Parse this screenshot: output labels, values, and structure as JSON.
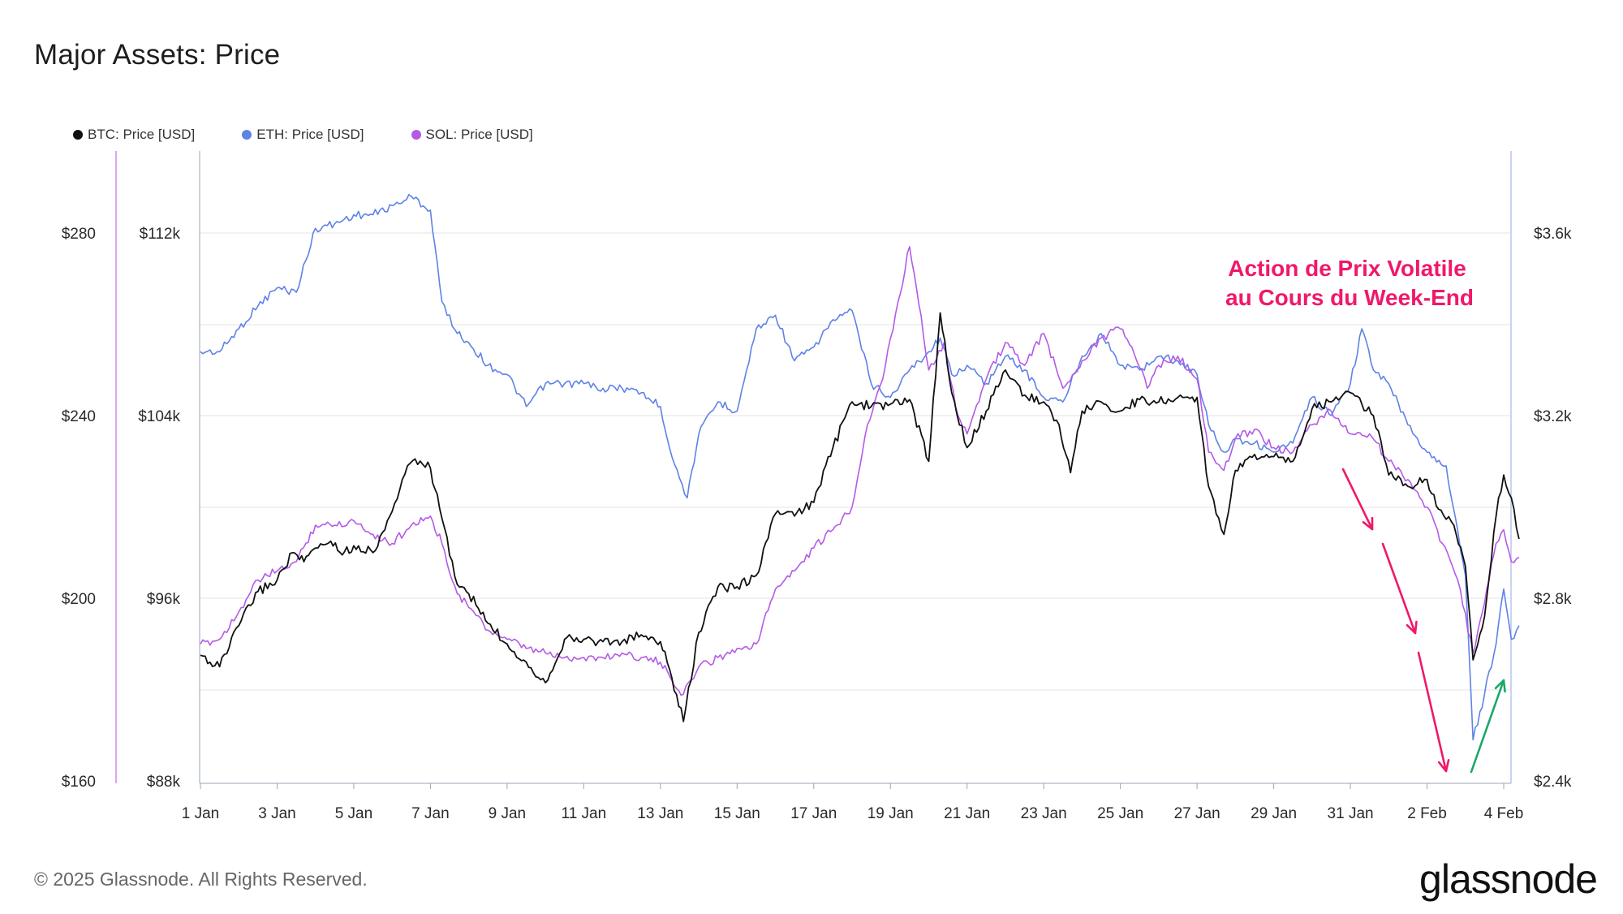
{
  "chart_data": {
    "type": "line",
    "title": "Major Assets: Price",
    "x_start": "1 Jan",
    "x_end": "4 Feb",
    "x_ticks": [
      "1 Jan",
      "3 Jan",
      "5 Jan",
      "7 Jan",
      "9 Jan",
      "11 Jan",
      "13 Jan",
      "15 Jan",
      "17 Jan",
      "19 Jan",
      "21 Jan",
      "23 Jan",
      "25 Jan",
      "27 Jan",
      "29 Jan",
      "31 Jan",
      "2 Feb",
      "4 Feb"
    ],
    "axes": {
      "sol": {
        "ticks": [
          "$280",
          "$240",
          "$200",
          "$160"
        ],
        "ylim": [
          160,
          300
        ]
      },
      "btc": {
        "ticks": [
          "$112k",
          "$104k",
          "$96k",
          "$88k"
        ],
        "ylim": [
          88000,
          116000
        ]
      },
      "eth": {
        "ticks": [
          "$3.6k",
          "$3.2k",
          "$2.8k",
          "$2.4k"
        ],
        "ylim": [
          2400,
          3800
        ]
      }
    },
    "grid": true,
    "legend_position": "top-left",
    "series": [
      {
        "name": "BTC: Price [USD]",
        "axis": "btc",
        "color": "#111111",
        "points": [
          [
            "1 Jan",
            93500
          ],
          [
            "1.5 Jan",
            93000
          ],
          [
            "2 Jan",
            94800
          ],
          [
            "2.5 Jan",
            96300
          ],
          [
            "3 Jan",
            96800
          ],
          [
            "3.4 Jan",
            98000
          ],
          [
            "3.7 Jan",
            97600
          ],
          [
            "4 Jan",
            98200
          ],
          [
            "4.4 Jan",
            98500
          ],
          [
            "4.7 Jan",
            97900
          ],
          [
            "5 Jan",
            98300
          ],
          [
            "5.5 Jan",
            98000
          ],
          [
            "6 Jan",
            99800
          ],
          [
            "6.4 Jan",
            101800
          ],
          [
            "6.6 Jan",
            102100
          ],
          [
            "7 Jan",
            101700
          ],
          [
            "7.3 Jan",
            99500
          ],
          [
            "7.7 Jan",
            96600
          ],
          [
            "8 Jan",
            96200
          ],
          [
            "8.5 Jan",
            94900
          ],
          [
            "9 Jan",
            94000
          ],
          [
            "9.5 Jan",
            93200
          ],
          [
            "10 Jan",
            92300
          ],
          [
            "10.5 Jan",
            94200
          ],
          [
            "11 Jan",
            94200
          ],
          [
            "11.5 Jan",
            94100
          ],
          [
            "12 Jan",
            94100
          ],
          [
            "12.5 Jan",
            94400
          ],
          [
            "13 Jan",
            94100
          ],
          [
            "13.3 Jan",
            92500
          ],
          [
            "13.6 Jan",
            90600
          ],
          [
            "14 Jan",
            94500
          ],
          [
            "14.5 Jan",
            96500
          ],
          [
            "15 Jan",
            96500
          ],
          [
            "15.5 Jan",
            97000
          ],
          [
            "16 Jan",
            99700
          ],
          [
            "16.5 Jan",
            99600
          ],
          [
            "17 Jan",
            100200
          ],
          [
            "17.5 Jan",
            102600
          ],
          [
            "18 Jan",
            104600
          ],
          [
            "18.5 Jan",
            104400
          ],
          [
            "19 Jan",
            104500
          ],
          [
            "19.5 Jan",
            104700
          ],
          [
            "20 Jan",
            102000
          ],
          [
            "20.3 Jan",
            108500
          ],
          [
            "20.6 Jan",
            105000
          ],
          [
            "21 Jan",
            102600
          ],
          [
            "21.5 Jan",
            104200
          ],
          [
            "22 Jan",
            106000
          ],
          [
            "22.5 Jan",
            104900
          ],
          [
            "23 Jan",
            104600
          ],
          [
            "23.4 Jan",
            103600
          ],
          [
            "23.7 Jan",
            101500
          ],
          [
            "24 Jan",
            104200
          ],
          [
            "24.5 Jan",
            104600
          ],
          [
            "25 Jan",
            104200
          ],
          [
            "25.5 Jan",
            104700
          ],
          [
            "26 Jan",
            104600
          ],
          [
            "26.5 Jan",
            104800
          ],
          [
            "27 Jan",
            104800
          ],
          [
            "27.3 Jan",
            100900
          ],
          [
            "27.7 Jan",
            98800
          ],
          [
            "28 Jan",
            101600
          ],
          [
            "28.5 Jan",
            102300
          ],
          [
            "29 Jan",
            102200
          ],
          [
            "29.5 Jan",
            102000
          ],
          [
            "30 Jan",
            104300
          ],
          [
            "30.5 Jan",
            104600
          ],
          [
            "31 Jan",
            105000
          ],
          [
            "31.3 Jan",
            104500
          ],
          [
            "31.6 Jan",
            104000
          ],
          [
            "1 Feb",
            101400
          ],
          [
            "1.5 Feb",
            100900
          ],
          [
            "2 Feb",
            101200
          ],
          [
            "2.3 Feb",
            99900
          ],
          [
            "2.7 Feb",
            99200
          ],
          [
            "3 Feb",
            97400
          ],
          [
            "3.2 Feb",
            93300
          ],
          [
            "3.5 Feb",
            95200
          ],
          [
            "3.8 Feb",
            99600
          ],
          [
            "4 Feb",
            101400
          ],
          [
            "4.2 Feb",
            100400
          ],
          [
            "4.4 Feb",
            98600
          ]
        ]
      },
      {
        "name": "ETH: Price [USD]",
        "axis": "eth",
        "color": "#5e82e6",
        "points": [
          [
            "1 Jan",
            3340
          ],
          [
            "1.5 Jan",
            3340
          ],
          [
            "2 Jan",
            3390
          ],
          [
            "2.5 Jan",
            3440
          ],
          [
            "3 Jan",
            3480
          ],
          [
            "3.5 Jan",
            3470
          ],
          [
            "4 Jan",
            3610
          ],
          [
            "4.5 Jan",
            3620
          ],
          [
            "5 Jan",
            3640
          ],
          [
            "5.5 Jan",
            3640
          ],
          [
            "6 Jan",
            3660
          ],
          [
            "6.5 Jan",
            3680
          ],
          [
            "7 Jan",
            3650
          ],
          [
            "7.3 Jan",
            3450
          ],
          [
            "7.7 Jan",
            3380
          ],
          [
            "8 Jan",
            3360
          ],
          [
            "8.5 Jan",
            3310
          ],
          [
            "9 Jan",
            3290
          ],
          [
            "9.5 Jan",
            3220
          ],
          [
            "10 Jan",
            3270
          ],
          [
            "10.5 Jan",
            3270
          ],
          [
            "11 Jan",
            3270
          ],
          [
            "11.5 Jan",
            3260
          ],
          [
            "12 Jan",
            3260
          ],
          [
            "12.5 Jan",
            3250
          ],
          [
            "13 Jan",
            3220
          ],
          [
            "13.3 Jan",
            3110
          ],
          [
            "13.7 Jan",
            3020
          ],
          [
            "14 Jan",
            3160
          ],
          [
            "14.5 Jan",
            3230
          ],
          [
            "15 Jan",
            3210
          ],
          [
            "15.5 Jan",
            3390
          ],
          [
            "16 Jan",
            3420
          ],
          [
            "16.5 Jan",
            3320
          ],
          [
            "17 Jan",
            3350
          ],
          [
            "17.5 Jan",
            3410
          ],
          [
            "18 Jan",
            3430
          ],
          [
            "18.5 Jan",
            3270
          ],
          [
            "19 Jan",
            3240
          ],
          [
            "19.5 Jan",
            3300
          ],
          [
            "20 Jan",
            3340
          ],
          [
            "20.3 Jan",
            3370
          ],
          [
            "20.6 Jan",
            3290
          ],
          [
            "21 Jan",
            3310
          ],
          [
            "21.5 Jan",
            3270
          ],
          [
            "22 Jan",
            3330
          ],
          [
            "22.5 Jan",
            3300
          ],
          [
            "23 Jan",
            3240
          ],
          [
            "23.5 Jan",
            3230
          ],
          [
            "24 Jan",
            3330
          ],
          [
            "24.5 Jan",
            3380
          ],
          [
            "25 Jan",
            3310
          ],
          [
            "25.5 Jan",
            3300
          ],
          [
            "26 Jan",
            3330
          ],
          [
            "26.5 Jan",
            3320
          ],
          [
            "27 Jan",
            3290
          ],
          [
            "27.3 Jan",
            3180
          ],
          [
            "27.7 Jan",
            3120
          ],
          [
            "28 Jan",
            3150
          ],
          [
            "28.5 Jan",
            3140
          ],
          [
            "29 Jan",
            3120
          ],
          [
            "29.5 Jan",
            3140
          ],
          [
            "30 Jan",
            3240
          ],
          [
            "30.5 Jan",
            3200
          ],
          [
            "31 Jan",
            3270
          ],
          [
            "31.3 Jan",
            3390
          ],
          [
            "31.6 Jan",
            3300
          ],
          [
            "1 Feb",
            3270
          ],
          [
            "1.5 Feb",
            3180
          ],
          [
            "2 Feb",
            3120
          ],
          [
            "2.5 Feb",
            3090
          ],
          [
            "3 Feb",
            2850
          ],
          [
            "3.2 Feb",
            2490
          ],
          [
            "3.5 Feb",
            2590
          ],
          [
            "3.8 Feb",
            2700
          ],
          [
            "4 Feb",
            2820
          ],
          [
            "4.2 Feb",
            2710
          ],
          [
            "4.4 Feb",
            2740
          ]
        ]
      },
      {
        "name": "SOL: Price [USD]",
        "axis": "sol",
        "color": "#b45ae6",
        "points": [
          [
            "1 Jan",
            190
          ],
          [
            "1.5 Jan",
            191
          ],
          [
            "2 Jan",
            197
          ],
          [
            "2.5 Jan",
            204
          ],
          [
            "3 Jan",
            206
          ],
          [
            "3.5 Jan",
            208
          ],
          [
            "4 Jan",
            216
          ],
          [
            "4.5 Jan",
            216
          ],
          [
            "5 Jan",
            217
          ],
          [
            "5.5 Jan",
            214
          ],
          [
            "6 Jan",
            212
          ],
          [
            "6.5 Jan",
            216
          ],
          [
            "7 Jan",
            218
          ],
          [
            "7.3 Jan",
            212
          ],
          [
            "7.7 Jan",
            201
          ],
          [
            "8 Jan",
            198
          ],
          [
            "8.5 Jan",
            193
          ],
          [
            "9 Jan",
            191
          ],
          [
            "9.5 Jan",
            189
          ],
          [
            "10 Jan",
            188
          ],
          [
            "10.5 Jan",
            187
          ],
          [
            "11 Jan",
            187
          ],
          [
            "11.5 Jan",
            187
          ],
          [
            "12 Jan",
            188
          ],
          [
            "12.5 Jan",
            187
          ],
          [
            "13 Jan",
            186
          ],
          [
            "13.3 Jan",
            182
          ],
          [
            "13.6 Jan",
            179
          ],
          [
            "14 Jan",
            185
          ],
          [
            "14.5 Jan",
            187
          ],
          [
            "15 Jan",
            189
          ],
          [
            "15.5 Jan",
            190
          ],
          [
            "16 Jan",
            202
          ],
          [
            "16.5 Jan",
            206
          ],
          [
            "17 Jan",
            211
          ],
          [
            "17.5 Jan",
            215
          ],
          [
            "18 Jan",
            220
          ],
          [
            "18.4 Jan",
            238
          ],
          [
            "18.8 Jan",
            248
          ],
          [
            "19.2 Jan",
            265
          ],
          [
            "19.5 Jan",
            277
          ],
          [
            "19.8 Jan",
            262
          ],
          [
            "20 Jan",
            250
          ],
          [
            "20.4 Jan",
            256
          ],
          [
            "20.7 Jan",
            242
          ],
          [
            "21 Jan",
            236
          ],
          [
            "21.5 Jan",
            248
          ],
          [
            "22 Jan",
            256
          ],
          [
            "22.5 Jan",
            251
          ],
          [
            "23 Jan",
            258
          ],
          [
            "23.5 Jan",
            246
          ],
          [
            "24 Jan",
            252
          ],
          [
            "24.5 Jan",
            257
          ],
          [
            "25 Jan",
            259
          ],
          [
            "25.3 Jan",
            255
          ],
          [
            "25.7 Jan",
            246
          ],
          [
            "26 Jan",
            251
          ],
          [
            "26.5 Jan",
            253
          ],
          [
            "27 Jan",
            248
          ],
          [
            "27.3 Jan",
            232
          ],
          [
            "27.7 Jan",
            228
          ],
          [
            "28 Jan",
            235
          ],
          [
            "28.5 Jan",
            237
          ],
          [
            "29 Jan",
            233
          ],
          [
            "29.5 Jan",
            232
          ],
          [
            "30 Jan",
            238
          ],
          [
            "30.5 Jan",
            241
          ],
          [
            "31 Jan",
            236
          ],
          [
            "31.5 Jan",
            236
          ],
          [
            "1 Feb",
            230
          ],
          [
            "1.5 Feb",
            226
          ],
          [
            "2 Feb",
            220
          ],
          [
            "2.4 Feb",
            212
          ],
          [
            "2.8 Feb",
            204
          ],
          [
            "3.2 Feb",
            188
          ],
          [
            "3.5 Feb",
            199
          ],
          [
            "3.8 Feb",
            212
          ],
          [
            "4 Feb",
            215
          ],
          [
            "4.2 Feb",
            208
          ],
          [
            "4.4 Feb",
            209
          ]
        ]
      }
    ]
  },
  "chart_title": "Major Assets: Price",
  "legend": {
    "btc": {
      "label": "BTC: Price [USD]",
      "color": "#111111"
    },
    "eth": {
      "label": "ETH: Price [USD]",
      "color": "#5e82e6"
    },
    "sol": {
      "label": "SOL: Price [USD]",
      "color": "#b45ae6"
    }
  },
  "annotation": {
    "line1": "Action de Prix Volatile",
    "line2": "au Cours du Week-End",
    "color": "#f0186a",
    "down_arrow_color": "#f0186a",
    "up_arrow_color": "#1aa86a"
  },
  "footer": {
    "copyright": "© 2025 Glassnode. All Rights Reserved.",
    "brand": "glassnode"
  }
}
